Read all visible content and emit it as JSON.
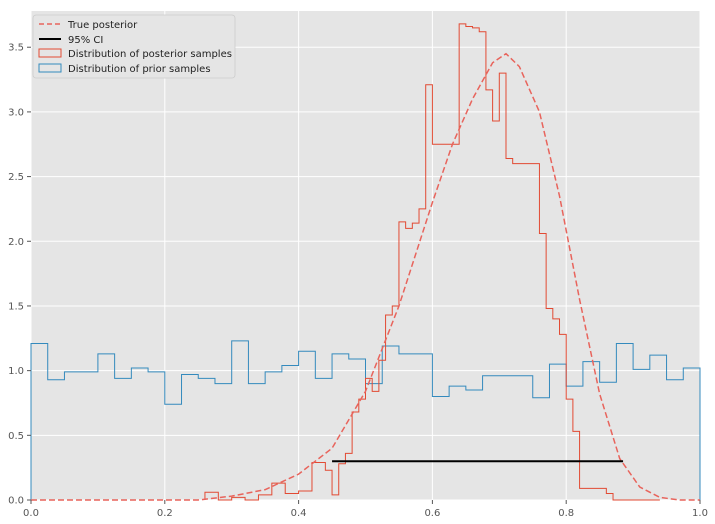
{
  "chart_data": {
    "type": "histogram",
    "title": "",
    "xlabel": "",
    "ylabel": "",
    "xlim": [
      0.0,
      1.0
    ],
    "ylim": [
      0.0,
      3.78
    ],
    "x_ticks": [
      "0.0",
      "0.2",
      "0.4",
      "0.6",
      "0.8",
      "1.0"
    ],
    "y_ticks": [
      "0.0",
      "0.5",
      "1.0",
      "1.5",
      "2.0",
      "2.5",
      "3.0",
      "3.5"
    ],
    "x_tick_values": [
      0.0,
      0.2,
      0.4,
      0.6,
      0.8,
      1.0
    ],
    "y_tick_values": [
      0.0,
      0.5,
      1.0,
      1.5,
      2.0,
      2.5,
      3.0,
      3.5
    ],
    "grid": true,
    "legend_position": "top-left",
    "legend": [
      {
        "label": "True posterior",
        "style": "dashed-line",
        "color": "#e8645c"
      },
      {
        "label": "95% CI",
        "style": "solid-line",
        "color": "#000000"
      },
      {
        "label": "Distribution of posterior samples",
        "style": "step-box",
        "color": "#e24a33"
      },
      {
        "label": "Distribution of prior samples",
        "style": "step-box",
        "color": "#348abd"
      }
    ],
    "colors": {
      "background": "#e5e5e5",
      "grid": "#ffffff",
      "posterior_hist": "#e24a33",
      "prior_hist": "#348abd",
      "true_posterior": "#e8645c",
      "ci": "#000000"
    },
    "series": [
      {
        "name": "Distribution of prior samples",
        "kind": "step",
        "edges": [
          0.0,
          0.025,
          0.05,
          0.1,
          0.125,
          0.15,
          0.175,
          0.2,
          0.225,
          0.25,
          0.275,
          0.3,
          0.325,
          0.35,
          0.375,
          0.4,
          0.425,
          0.45,
          0.475,
          0.5,
          0.525,
          0.55,
          0.6,
          0.625,
          0.65,
          0.675,
          0.75,
          0.775,
          0.8,
          0.825,
          0.85,
          0.875,
          0.9,
          0.925,
          0.95,
          0.975,
          1.0
        ],
        "values": [
          1.21,
          0.93,
          0.99,
          1.13,
          0.94,
          1.02,
          0.99,
          0.74,
          0.97,
          0.94,
          0.9,
          1.23,
          0.9,
          0.99,
          1.04,
          1.15,
          0.94,
          1.13,
          1.09,
          0.9,
          1.19,
          1.13,
          0.8,
          0.88,
          0.85,
          0.96,
          0.79,
          1.05,
          0.88,
          1.07,
          0.91,
          1.21,
          1.01,
          1.12,
          0.93,
          1.02
        ]
      },
      {
        "name": "Distribution of posterior samples",
        "kind": "step",
        "edges": [
          0.26,
          0.28,
          0.3,
          0.32,
          0.34,
          0.36,
          0.38,
          0.4,
          0.42,
          0.44,
          0.45,
          0.46,
          0.47,
          0.48,
          0.49,
          0.5,
          0.51,
          0.52,
          0.53,
          0.54,
          0.55,
          0.56,
          0.57,
          0.58,
          0.59,
          0.6,
          0.61,
          0.62,
          0.63,
          0.64,
          0.65,
          0.66,
          0.67,
          0.68,
          0.69,
          0.7,
          0.71,
          0.72,
          0.73,
          0.74,
          0.75,
          0.76,
          0.77,
          0.78,
          0.79,
          0.8,
          0.81,
          0.82,
          0.83,
          0.84,
          0.85,
          0.86,
          0.87,
          0.88,
          0.89,
          0.9,
          0.91,
          0.92,
          0.93,
          0.94
        ],
        "values": [
          0.06,
          0.0,
          0.02,
          0.0,
          0.04,
          0.13,
          0.05,
          0.07,
          0.29,
          0.23,
          0.04,
          0.28,
          0.36,
          0.68,
          0.78,
          0.94,
          0.84,
          1.08,
          1.43,
          1.5,
          2.15,
          2.1,
          2.14,
          2.25,
          3.21,
          2.75,
          2.75,
          2.75,
          2.75,
          3.68,
          3.66,
          3.65,
          3.62,
          3.17,
          2.93,
          3.3,
          2.64,
          2.6,
          2.6,
          2.6,
          2.6,
          2.06,
          1.48,
          1.4,
          1.28,
          0.78,
          0.53,
          0.09,
          0.09,
          0.09,
          0.09,
          0.05,
          0.0,
          0.0,
          0.0,
          0.0,
          0.0,
          0.0,
          0.0
        ]
      },
      {
        "name": "True posterior",
        "kind": "curve",
        "x": [
          0.0,
          0.2,
          0.25,
          0.3,
          0.35,
          0.4,
          0.45,
          0.5,
          0.55,
          0.6,
          0.63,
          0.66,
          0.69,
          0.71,
          0.73,
          0.76,
          0.79,
          0.82,
          0.85,
          0.88,
          0.91,
          0.94,
          0.97,
          1.0
        ],
        "y": [
          0.0,
          0.0,
          0.0,
          0.03,
          0.08,
          0.2,
          0.4,
          0.84,
          1.5,
          2.3,
          2.75,
          3.1,
          3.38,
          3.45,
          3.35,
          3.0,
          2.35,
          1.55,
          0.82,
          0.32,
          0.1,
          0.02,
          0.0,
          0.0
        ]
      },
      {
        "name": "95% CI",
        "kind": "segment",
        "x": [
          0.45,
          0.885
        ],
        "y": [
          0.3,
          0.3
        ]
      }
    ]
  }
}
